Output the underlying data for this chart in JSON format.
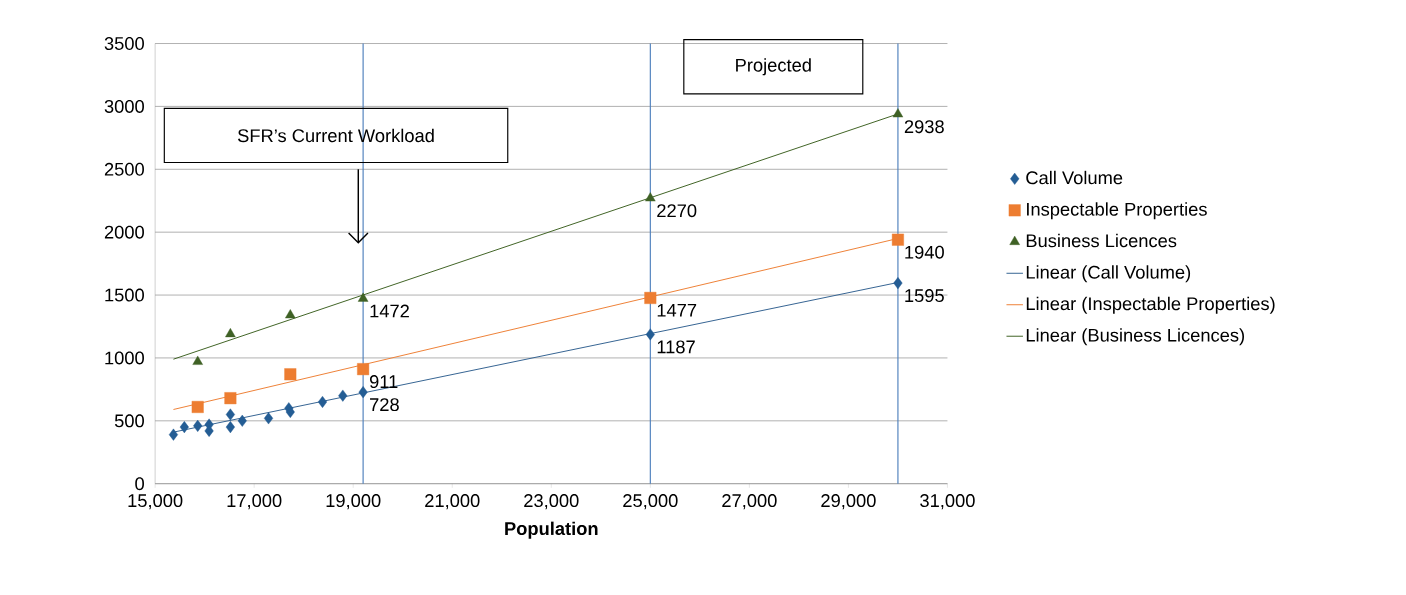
{
  "chart_data": {
    "type": "scatter",
    "xlabel": "Population",
    "xlim": [
      15000,
      31000
    ],
    "ylim": [
      0,
      3500
    ],
    "xticks": [
      {
        "value": 15000,
        "label": "15,000"
      },
      {
        "value": 17000,
        "label": "17,000"
      },
      {
        "value": 19000,
        "label": "19,000"
      },
      {
        "value": 21000,
        "label": "21,000"
      },
      {
        "value": 23000,
        "label": "23,000"
      },
      {
        "value": 25000,
        "label": "25,000"
      },
      {
        "value": 27000,
        "label": "27,000"
      },
      {
        "value": 29000,
        "label": "29,000"
      },
      {
        "value": 31000,
        "label": "31,000"
      }
    ],
    "yticks": [
      0,
      500,
      1000,
      1500,
      2000,
      2500,
      3000,
      3500
    ],
    "grid": "y",
    "legend": "right",
    "annotations": [
      "SFR’s Current Workload",
      "Projected"
    ],
    "ref_lines": [
      {
        "axis": "x",
        "value": 19200,
        "color": "#4f81bd"
      },
      {
        "axis": "x",
        "value": 25000,
        "color": "#4f81bd"
      },
      {
        "axis": "x",
        "value": 30000,
        "color": "#4f81bd"
      }
    ],
    "series": [
      {
        "name": "Call Volume",
        "marker": "diamond",
        "color": "#245d94",
        "x": [
          15370,
          15590,
          15860,
          16090,
          16090,
          16520,
          16520,
          16760,
          17290,
          17700,
          17730,
          18380,
          18790,
          19200,
          25000,
          30000
        ],
        "values": [
          390,
          450,
          460,
          470,
          420,
          550,
          450,
          500,
          520,
          600,
          570,
          650,
          700,
          728,
          1187,
          1595
        ],
        "value_labels": [
          null,
          null,
          null,
          null,
          null,
          null,
          null,
          null,
          null,
          null,
          null,
          null,
          null,
          "728",
          "1187",
          "1595"
        ]
      },
      {
        "name": "Inspectable Properties",
        "marker": "square",
        "color": "#ed7d31",
        "x": [
          15860,
          16520,
          17730,
          19200,
          25000,
          30000
        ],
        "values": [
          610,
          680,
          870,
          911,
          1477,
          1940
        ],
        "value_labels": [
          null,
          null,
          null,
          "911",
          "1477",
          "1940"
        ]
      },
      {
        "name": "Business Licences",
        "marker": "triangle",
        "color": "#3f6125",
        "x": [
          15860,
          16520,
          17730,
          19200,
          25000,
          30000
        ],
        "values": [
          970,
          1190,
          1340,
          1472,
          2270,
          2938
        ],
        "value_labels": [
          null,
          null,
          null,
          "1472",
          "2270",
          "2938"
        ]
      },
      {
        "name": "Linear (Call Volume)",
        "type": "line",
        "marker": "none",
        "color": "#2f5f8f",
        "x": [
          15370,
          30000
        ],
        "values": [
          410,
          1600
        ]
      },
      {
        "name": "Linear (Inspectable Properties)",
        "type": "line",
        "marker": "none",
        "color": "#ed7d31",
        "x": [
          15370,
          30000
        ],
        "values": [
          590,
          1950
        ]
      },
      {
        "name": "Linear (Business Licences)",
        "type": "line",
        "marker": "none",
        "color": "#3a5f1e",
        "x": [
          15370,
          30000
        ],
        "values": [
          990,
          2940
        ]
      }
    ]
  }
}
